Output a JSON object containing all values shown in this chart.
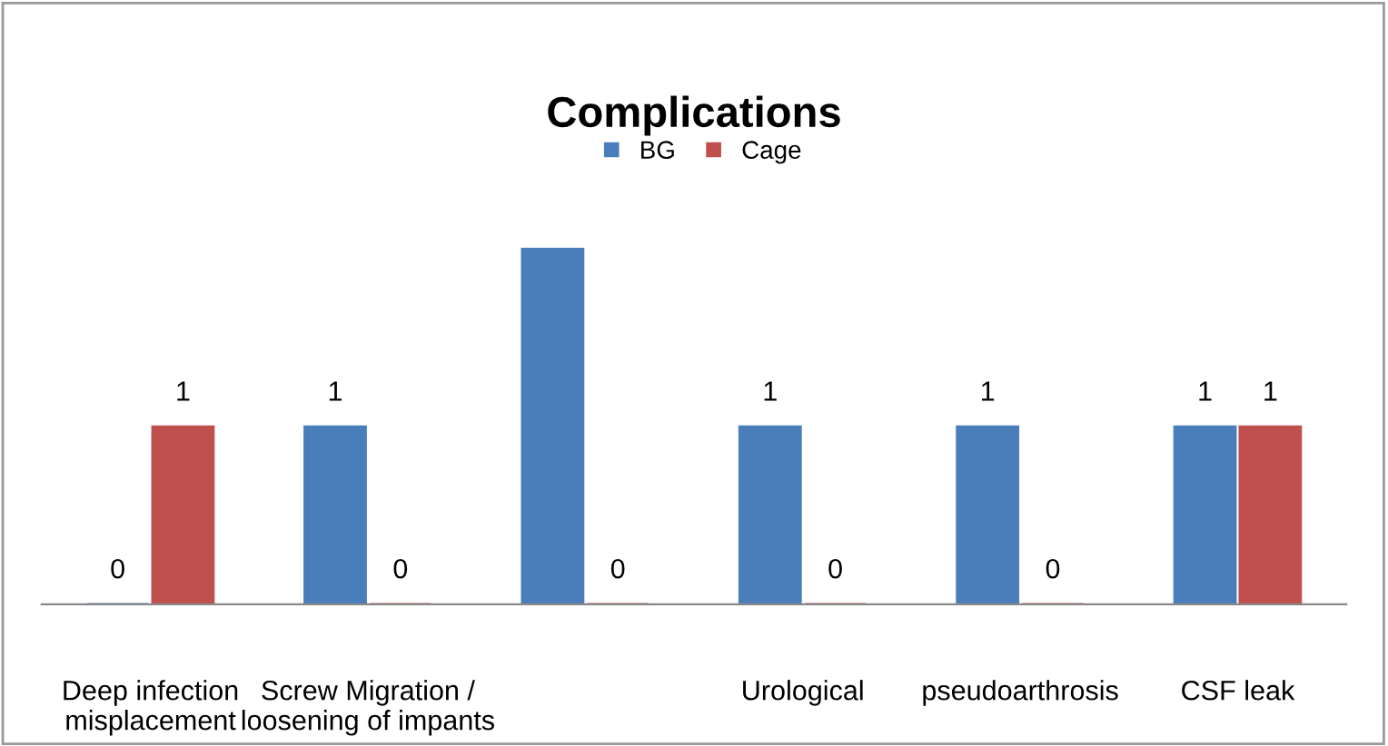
{
  "chart_data": {
    "type": "bar",
    "title": "Complications",
    "categories": [
      "Deep infection\nmisplacement",
      "Screw Migration /\nloosening of impants",
      null,
      "Urological",
      "pseudoarthrosis",
      "CSF leak"
    ],
    "series": [
      {
        "name": "BG",
        "color": "#4a7ebb",
        "values": [
          0,
          1,
          2,
          1,
          1,
          1
        ],
        "value_labels": [
          "0",
          "1",
          null,
          "1",
          "1",
          "1"
        ]
      },
      {
        "name": "Cage",
        "color": "#c0504d",
        "values": [
          1,
          0,
          0,
          0,
          0,
          1
        ],
        "value_labels": [
          "1",
          "0",
          "0",
          "0",
          "0",
          "1"
        ]
      }
    ],
    "legend": "top",
    "grid": false
  }
}
